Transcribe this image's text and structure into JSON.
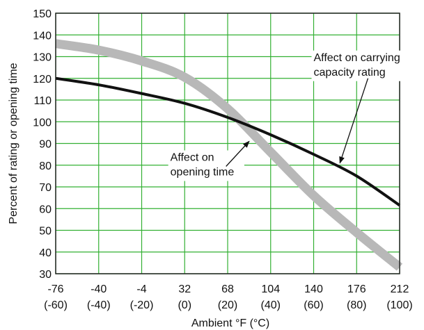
{
  "chart_data": {
    "type": "line",
    "xlabel": "Ambient °F (°C)",
    "ylabel": "Percent of rating or opening time",
    "grid": true,
    "x_axis": {
      "range": [
        -76,
        212
      ],
      "ticks": [
        {
          "value": -76,
          "f": "-76",
          "c": "(-60)"
        },
        {
          "value": -40,
          "f": "-40",
          "c": "(-40)"
        },
        {
          "value": -4,
          "f": "-4",
          "c": "(-20)"
        },
        {
          "value": 32,
          "f": "32",
          "c": "(0)"
        },
        {
          "value": 68,
          "f": "68",
          "c": "(20)"
        },
        {
          "value": 104,
          "f": "104",
          "c": "(40)"
        },
        {
          "value": 140,
          "f": "140",
          "c": "(60)"
        },
        {
          "value": 176,
          "f": "176",
          "c": "(80)"
        },
        {
          "value": 212,
          "f": "212",
          "c": "(100)"
        }
      ]
    },
    "y_axis": {
      "range": [
        30,
        150
      ],
      "ticks": [
        "30",
        "40",
        "50",
        "60",
        "70",
        "80",
        "90",
        "100",
        "110",
        "120",
        "130",
        "140",
        "150"
      ]
    },
    "series": [
      {
        "name": "carrying capacity rating",
        "color": "#111111",
        "x": [
          -76,
          -40,
          -4,
          32,
          68,
          104,
          140,
          176,
          212
        ],
        "y": [
          120,
          117,
          113,
          108.5,
          102,
          94,
          85,
          75,
          61.5
        ]
      },
      {
        "name": "opening time",
        "color": "#b8b8b8",
        "x": [
          -76,
          -40,
          -4,
          32,
          68,
          104,
          140,
          176,
          212
        ],
        "y": [
          136,
          133,
          128,
          120.5,
          106,
          86,
          66,
          49,
          33
        ]
      }
    ],
    "annotations": [
      {
        "lines": [
          "Affect on carrying",
          "capacity rating"
        ],
        "x": 140,
        "y": 128,
        "arrow_to": [
          162,
          81
        ]
      },
      {
        "lines": [
          "Affect on",
          "opening time"
        ],
        "x": 20,
        "y": 82,
        "arrow_to": [
          86,
          91
        ]
      }
    ]
  },
  "colors": {
    "grid": "#33b033",
    "frame": "#222222",
    "carrying_line": "#111111",
    "opening_band": "#b8b8b8"
  }
}
